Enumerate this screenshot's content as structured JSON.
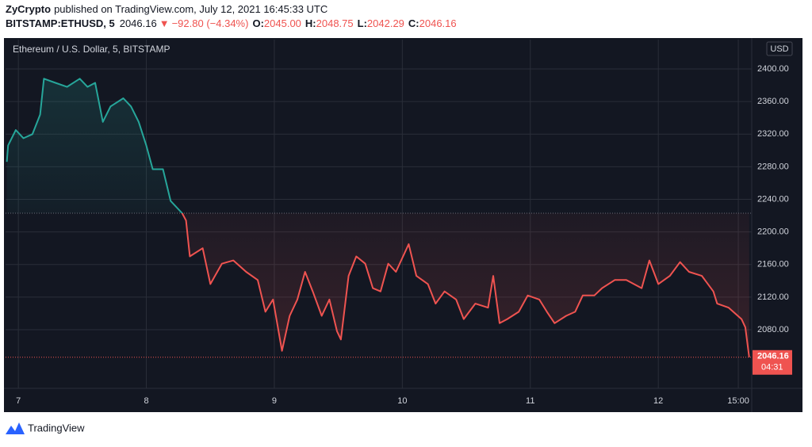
{
  "header": {
    "author": "ZyCrypto",
    "published": "published on TradingView.com, July 12, 2021 16:45:33 UTC",
    "symbol": "BITSTAMP:ETHUSD, 5",
    "last": "2046.16",
    "arrow": "▼",
    "change": "−92.80 (−4.34%)",
    "ohlc": [
      {
        "label": "O:",
        "value": "2045.00"
      },
      {
        "label": "H:",
        "value": "2048.75"
      },
      {
        "label": "L:",
        "value": "2042.29"
      },
      {
        "label": "C:",
        "value": "2046.16"
      }
    ]
  },
  "chart_data": {
    "type": "line",
    "legend": "Ethereum / U.S. Dollar, 5, BITSTAMP",
    "currency": "USD",
    "countdown": "04:31",
    "baseline": 2223,
    "colors": {
      "above": "#26a69a",
      "below": "#ef5350"
    },
    "grid": true,
    "xlim": [
      6.9,
      12.73
    ],
    "ylim": [
      2008,
      2436
    ],
    "xticks": [
      7,
      8,
      9,
      10,
      11,
      12,
      {
        "value": 12.625,
        "label": "15:00"
      }
    ],
    "yticks": [
      {
        "value": 2080,
        "label": "2080.00"
      },
      {
        "value": 2120,
        "label": "2120.00"
      },
      {
        "value": 2160,
        "label": "2160.00"
      },
      {
        "value": 2200,
        "label": "2200.00"
      },
      {
        "value": 2240,
        "label": "2240.00"
      },
      {
        "value": 2280,
        "label": "2280.00"
      },
      {
        "value": 2320,
        "label": "2320.00"
      },
      {
        "value": 2360,
        "label": "2360.00"
      },
      {
        "value": 2400,
        "label": "2400.00"
      }
    ],
    "x": [
      6.91,
      6.92,
      6.98,
      7.04,
      7.11,
      7.17,
      7.2,
      7.29,
      7.38,
      7.48,
      7.54,
      7.6,
      7.66,
      7.72,
      7.82,
      7.88,
      7.94,
      8.0,
      8.05,
      8.13,
      8.19,
      8.28,
      8.31,
      8.34,
      8.44,
      8.5,
      8.59,
      8.68,
      8.78,
      8.87,
      8.93,
      8.99,
      9.06,
      9.12,
      9.18,
      9.24,
      9.3,
      9.37,
      9.43,
      9.49,
      9.52,
      9.58,
      9.64,
      9.71,
      9.77,
      9.83,
      9.89,
      9.95,
      10.05,
      10.11,
      10.2,
      10.26,
      10.33,
      10.42,
      10.48,
      10.57,
      10.67,
      10.71,
      10.76,
      10.82,
      10.91,
      10.98,
      11.07,
      11.13,
      11.19,
      11.28,
      11.35,
      11.41,
      11.5,
      11.56,
      11.66,
      11.75,
      11.87,
      11.93,
      12.0,
      12.09,
      12.17,
      12.24,
      12.34,
      12.43,
      12.46,
      12.55,
      12.65,
      12.68,
      12.71
    ],
    "values": [
      2286,
      2306,
      2325,
      2315,
      2320,
      2344,
      2388,
      2383,
      2378,
      2388,
      2378,
      2383,
      2335,
      2354,
      2364,
      2354,
      2335,
      2306,
      2277,
      2277,
      2238,
      2223,
      2214,
      2170,
      2180,
      2136,
      2161,
      2165,
      2151,
      2141,
      2102,
      2117,
      2054,
      2097,
      2117,
      2151,
      2127,
      2097,
      2117,
      2078,
      2068,
      2146,
      2170,
      2161,
      2131,
      2127,
      2161,
      2151,
      2185,
      2146,
      2136,
      2112,
      2127,
      2117,
      2093,
      2112,
      2107,
      2146,
      2088,
      2093,
      2102,
      2122,
      2117,
      2102,
      2088,
      2097,
      2102,
      2122,
      2122,
      2131,
      2141,
      2141,
      2131,
      2165,
      2136,
      2146,
      2163,
      2151,
      2146,
      2127,
      2112,
      2107,
      2093,
      2083,
      2046.16
    ]
  },
  "footer": {
    "brand": "TradingView"
  }
}
